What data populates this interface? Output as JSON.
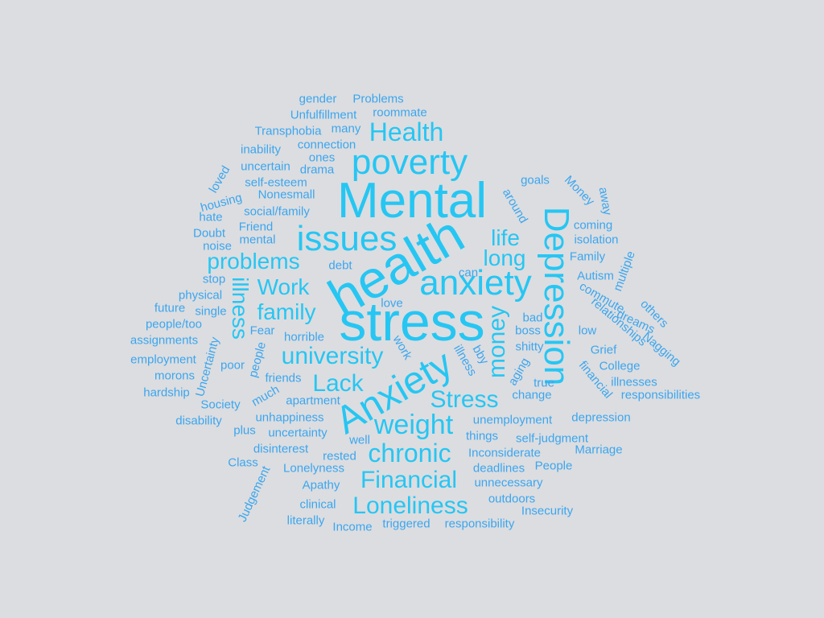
{
  "wordcloud": {
    "words": [
      "Mental",
      "health",
      "stress",
      "Anxiety",
      "anxiety",
      "Depression",
      "poverty",
      "issues",
      "Health",
      "problems",
      "Work",
      "family",
      "illness",
      "university",
      "Lack",
      "Stress",
      "weight",
      "chronic",
      "Financial",
      "Loneliness",
      "money",
      "life",
      "long",
      "gender",
      "Problems",
      "Unfulfillment",
      "roommate",
      "Transphobia",
      "many",
      "inability",
      "connection",
      "ones",
      "uncertain",
      "drama",
      "self-esteem",
      "loved",
      "housing",
      "Nonesmall",
      "social/family",
      "hate",
      "Friend",
      "Doubt",
      "mental",
      "noise",
      "debt",
      "stop",
      "can",
      "physical",
      "future",
      "single",
      "people/too",
      "assignments",
      "Fear",
      "horrible",
      "love",
      "employment",
      "morons",
      "hardship",
      "Uncertainty",
      "Society",
      "disability",
      "poor",
      "people",
      "friends",
      "much",
      "apartment",
      "unhappiness",
      "plus",
      "uncertainty",
      "disinterest",
      "well",
      "rested",
      "Class",
      "Lonelyness",
      "Judgement",
      "Apathy",
      "clinical",
      "literally",
      "Income",
      "triggered",
      "responsibility",
      "goals",
      "around",
      "Money",
      "away",
      "coming",
      "isolation",
      "Family",
      "multiple",
      "Autism",
      "commute",
      "others",
      "relationships",
      "dreams",
      "bad",
      "boss",
      "low",
      "Nagging",
      "Grief",
      "College",
      "shitty",
      "aging",
      "true",
      "financial",
      "illnesses",
      "change",
      "responsibilities",
      "unemployment",
      "depression",
      "things",
      "self-judgment",
      "Marriage",
      "Inconsiderate",
      "People",
      "deadlines",
      "unnecessary",
      "outdoors",
      "Insecurity",
      "bby",
      "illness",
      "work"
    ]
  }
}
